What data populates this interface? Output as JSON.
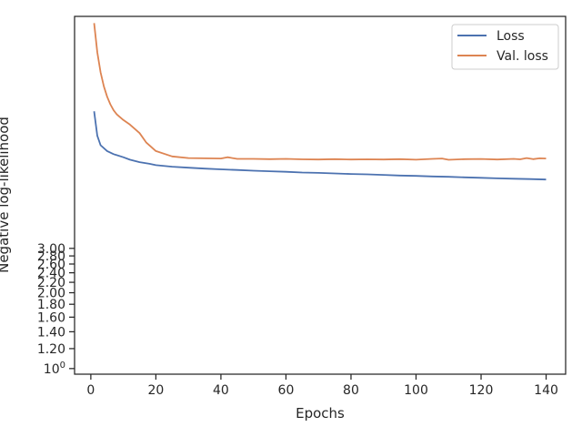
{
  "chart_data": {
    "type": "line",
    "xlabel": "Epochs",
    "ylabel": "Negative log-likelihood",
    "xlim": [
      -5,
      146
    ],
    "ylim": [
      0.95,
      25
    ],
    "yscale": "log",
    "legend_position": "top-right",
    "grid": false,
    "x_ticks": [
      0,
      20,
      40,
      60,
      80,
      100,
      120,
      140
    ],
    "y_ticks": [
      {
        "value": 1.0,
        "label": "10",
        "sup": "0"
      },
      {
        "value": 1.2,
        "label": "1.20"
      },
      {
        "value": 1.4,
        "label": "1.40"
      },
      {
        "value": 1.6,
        "label": "1.60"
      },
      {
        "value": 1.8,
        "label": "1.80"
      },
      {
        "value": 2.0,
        "label": "2.00"
      },
      {
        "value": 2.2,
        "label": "2.20"
      },
      {
        "value": 2.4,
        "label": "2.40"
      },
      {
        "value": 2.6,
        "label": "2.60"
      },
      {
        "value": 2.8,
        "label": "2.80"
      },
      {
        "value": 3.0,
        "label": "3.00"
      }
    ],
    "series": [
      {
        "name": "Loss",
        "color": "#4c72b0",
        "x": [
          1,
          2,
          3,
          5,
          7,
          10,
          12,
          15,
          18,
          20,
          25,
          30,
          35,
          40,
          45,
          50,
          55,
          60,
          65,
          70,
          75,
          80,
          85,
          90,
          95,
          100,
          105,
          110,
          115,
          120,
          125,
          130,
          135,
          140
        ],
        "y": [
          10.5,
          8.4,
          7.7,
          7.3,
          7.1,
          6.9,
          6.75,
          6.6,
          6.5,
          6.42,
          6.33,
          6.27,
          6.22,
          6.18,
          6.14,
          6.1,
          6.07,
          6.04,
          6.0,
          5.98,
          5.95,
          5.92,
          5.9,
          5.87,
          5.84,
          5.82,
          5.79,
          5.77,
          5.74,
          5.72,
          5.69,
          5.67,
          5.65,
          5.63
        ]
      },
      {
        "name": "Val. loss",
        "color": "#dd8452",
        "x": [
          1,
          2,
          3,
          4,
          5,
          6,
          7,
          8,
          10,
          12,
          15,
          17,
          20,
          25,
          30,
          35,
          40,
          42,
          45,
          50,
          55,
          60,
          65,
          70,
          75,
          80,
          85,
          90,
          95,
          100,
          105,
          108,
          110,
          115,
          120,
          125,
          130,
          132,
          134,
          136,
          138,
          140
        ],
        "y": [
          23.5,
          18.0,
          15.0,
          13.2,
          12.0,
          11.2,
          10.6,
          10.2,
          9.7,
          9.3,
          8.6,
          7.9,
          7.3,
          6.95,
          6.85,
          6.83,
          6.82,
          6.9,
          6.8,
          6.8,
          6.78,
          6.8,
          6.77,
          6.76,
          6.78,
          6.76,
          6.77,
          6.76,
          6.78,
          6.75,
          6.8,
          6.82,
          6.74,
          6.78,
          6.79,
          6.76,
          6.8,
          6.77,
          6.85,
          6.78,
          6.83,
          6.82
        ]
      }
    ]
  }
}
